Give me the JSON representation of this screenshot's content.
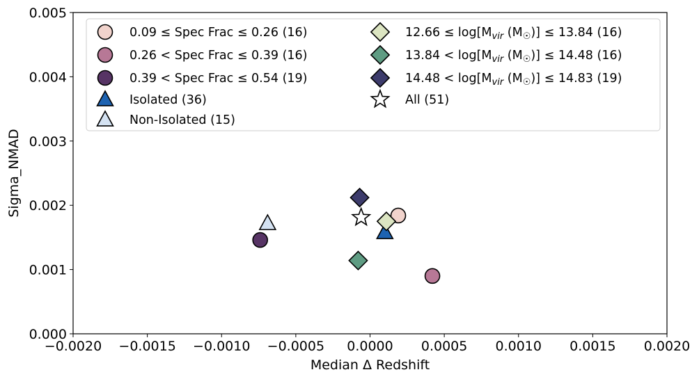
{
  "chart_data": {
    "type": "scatter",
    "xlabel": "Median Δ Redshift",
    "ylabel": "Sigma_NMAD",
    "xlim": [
      -0.002,
      0.002
    ],
    "ylim": [
      0.0,
      0.005
    ],
    "xticks": [
      "−0.0020",
      "−0.0015",
      "−0.0010",
      "−0.0005",
      "0.0000",
      "0.0005",
      "0.0010",
      "0.0015",
      "0.0020"
    ],
    "xtick_values": [
      -0.002,
      -0.0015,
      -0.001,
      -0.0005,
      0.0,
      0.0005,
      0.001,
      0.0015,
      0.002
    ],
    "yticks": [
      "0.000",
      "0.001",
      "0.002",
      "0.003",
      "0.004",
      "0.005"
    ],
    "ytick_values": [
      0.0,
      0.001,
      0.002,
      0.003,
      0.004,
      0.005
    ],
    "grid": false,
    "legend_placement": "upper center, two columns",
    "series": [
      {
        "name": "0.09 ≤ Spec Frac ≤ 0.26 (16)",
        "marker": "circle",
        "color": "#f1d3cc",
        "x": 0.00019,
        "y": 0.00184
      },
      {
        "name": "0.26 < Spec Frac ≤ 0.39 (16)",
        "marker": "circle",
        "color": "#b77896",
        "x": 0.00042,
        "y": 0.0009
      },
      {
        "name": "0.39 < Spec Frac ≤ 0.54 (19)",
        "marker": "circle",
        "color": "#573465",
        "x": -0.00074,
        "y": 0.00146
      },
      {
        "name": "Isolated (36)",
        "marker": "triangle",
        "color": "#1d63b2",
        "x": 0.0001,
        "y": 0.00158
      },
      {
        "name": "Non-Isolated (15)",
        "marker": "triangle",
        "color": "#d4e2f2",
        "x": -0.00069,
        "y": 0.00172
      },
      {
        "name_parts": [
          "12.66",
          "≤ log[M",
          "vir",
          "(M",
          "☉",
          ")]",
          "≤",
          "13.84 (16)"
        ],
        "marker": "diamond",
        "color": "#dce5c2",
        "x": 0.00011,
        "y": 0.00175
      },
      {
        "name_parts": [
          "13.84 <",
          "log[M",
          "vir",
          "(M",
          "☉",
          ")]",
          "≤",
          "14.48 (16)"
        ],
        "marker": "diamond",
        "color": "#5f9c83",
        "x": -8e-05,
        "y": 0.00114
      },
      {
        "name_parts": [
          "14.48 <",
          "log[M",
          "vir",
          "(M",
          "☉",
          ")]",
          "≤",
          "14.83 (19)"
        ],
        "marker": "diamond",
        "color": "#3c3b6b",
        "x": -7e-05,
        "y": 0.00212
      },
      {
        "name": "All (51)",
        "marker": "star",
        "color": "#ffffff",
        "x": -6e-05,
        "y": 0.00181
      }
    ]
  }
}
